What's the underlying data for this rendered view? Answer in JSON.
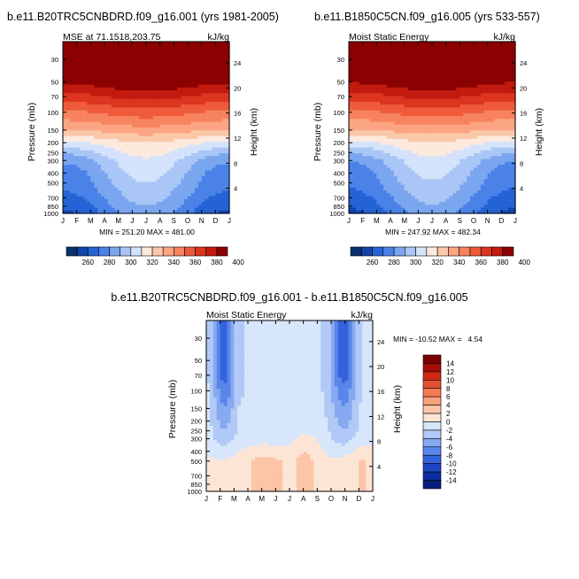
{
  "panels": [
    {
      "title": "b.e11.B20TRC5CNBDRD.f09_g16.001 (yrs 1981-2005)",
      "left_label": "MSE at 71.1518,203.75",
      "right_label": "kJ/kg",
      "stats": "MIN = 251.20 MAX = 481.00"
    },
    {
      "title": "b.e11.B1850C5CN.f09_g16.005 (yrs 533-557)",
      "left_label": "Moist Static Energy",
      "right_label": "kJ/kg",
      "stats": "MIN = 247.92 MAX = 482.34"
    },
    {
      "title": "b.e11.B20TRC5CNBDRD.f09_g16.001 - b.e11.B1850C5CN.f09_g16.005",
      "left_label": "Moist Static Energy",
      "right_label": "kJ/kg",
      "stats": "MIN = -10.52 MAX =   4.54"
    }
  ],
  "colors": {
    "abs_scale": [
      "#08306b",
      "#1243a8",
      "#2563d6",
      "#4a82e8",
      "#7aa6ef",
      "#a9c6f6",
      "#d4e3fb",
      "#fde9dd",
      "#fcc8aa",
      "#fba583",
      "#f7835f",
      "#ee5a3a",
      "#dc3520",
      "#c21a0e",
      "#8b0000"
    ],
    "diff_scale": [
      "#081f80",
      "#0b2ea3",
      "#1c45c4",
      "#3563dc",
      "#5a86ea",
      "#86a9f1",
      "#b0c9f7",
      "#d7e6fb",
      "#fde5d6",
      "#fcc5a7",
      "#fba07c",
      "#f57a55",
      "#e65030",
      "#cf2a14",
      "#a80c05",
      "#7d0000"
    ]
  },
  "chart_data": [
    {
      "type": "contour",
      "title": "b.e11.B20TRC5CNBDRD.f09_g16.001 (yrs 1981-2005)",
      "subtitle_left": "MSE at 71.1518,203.75",
      "subtitle_right": "kJ/kg",
      "xlabel": "",
      "ylabel": "Pressure (mb)",
      "ylabel_right": "Height (km)",
      "x_ticks": [
        "J",
        "F",
        "M",
        "A",
        "M",
        "J",
        "J",
        "A",
        "S",
        "O",
        "N",
        "D",
        "J"
      ],
      "y_ticks_pressure": [
        "30",
        "50",
        "70",
        "100",
        "150",
        "200",
        "250",
        "300",
        "400",
        "500",
        "700",
        "850",
        "1000"
      ],
      "y_ticks_height": [
        "24",
        "20",
        "16",
        "12",
        "8",
        "4"
      ],
      "ylim_pressure": [
        1000,
        20
      ],
      "y_scale": "log",
      "colorbar_labels": [
        "260",
        "280",
        "300",
        "320",
        "340",
        "360",
        "380",
        "400"
      ],
      "contour_levels": [
        250,
        260,
        270,
        280,
        290,
        300,
        310,
        320,
        330,
        340,
        350,
        360,
        370,
        380,
        390,
        400
      ],
      "profile_pressure": [
        1000,
        850,
        700,
        600,
        500,
        400,
        300,
        250,
        200,
        150,
        100,
        70,
        50,
        30,
        20
      ],
      "profile_winter": [
        268,
        272,
        276,
        280,
        282,
        284,
        292,
        302,
        318,
        340,
        358,
        376,
        392,
        420,
        450
      ],
      "profile_summer": [
        296,
        300,
        304,
        306,
        310,
        314,
        318,
        324,
        330,
        346,
        366,
        384,
        400,
        425,
        455
      ],
      "min": 251.2,
      "max": 481.0
    },
    {
      "type": "contour",
      "title": "b.e11.B1850C5CN.f09_g16.005 (yrs 533-557)",
      "subtitle_left": "Moist Static Energy",
      "subtitle_right": "kJ/kg",
      "xlabel": "",
      "ylabel": "Pressure (mb)",
      "ylabel_right": "Height (km)",
      "x_ticks": [
        "J",
        "F",
        "M",
        "A",
        "M",
        "J",
        "J",
        "A",
        "S",
        "O",
        "N",
        "D",
        "J"
      ],
      "y_ticks_pressure": [
        "30",
        "50",
        "70",
        "100",
        "150",
        "200",
        "250",
        "300",
        "400",
        "500",
        "700",
        "850",
        "1000"
      ],
      "y_ticks_height": [
        "24",
        "20",
        "16",
        "12",
        "8",
        "4"
      ],
      "ylim_pressure": [
        1000,
        20
      ],
      "y_scale": "log",
      "colorbar_labels": [
        "260",
        "280",
        "300",
        "320",
        "340",
        "360",
        "380",
        "400"
      ],
      "contour_levels": [
        250,
        260,
        270,
        280,
        290,
        300,
        310,
        320,
        330,
        340,
        350,
        360,
        370,
        380,
        390,
        400
      ],
      "profile_pressure": [
        1000,
        850,
        700,
        600,
        500,
        400,
        300,
        250,
        200,
        150,
        100,
        70,
        50,
        30,
        20
      ],
      "profile_winter": [
        267,
        271,
        275,
        279,
        281,
        283,
        291,
        301,
        317,
        339,
        357,
        375,
        391,
        420,
        450
      ],
      "profile_summer": [
        295,
        299,
        303,
        305,
        309,
        313,
        317,
        323,
        329,
        345,
        365,
        383,
        399,
        425,
        455
      ],
      "min": 247.92,
      "max": 482.34
    },
    {
      "type": "contour",
      "title": "b.e11.B20TRC5CNBDRD.f09_g16.001 - b.e11.B1850C5CN.f09_g16.005",
      "subtitle_left": "Moist Static Energy",
      "subtitle_right": "kJ/kg",
      "xlabel": "",
      "ylabel": "Pressure (mb)",
      "ylabel_right": "Height (km)",
      "x_ticks": [
        "J",
        "F",
        "M",
        "A",
        "M",
        "J",
        "J",
        "A",
        "S",
        "O",
        "N",
        "D",
        "J"
      ],
      "y_ticks_pressure": [
        "30",
        "50",
        "70",
        "100",
        "150",
        "200",
        "250",
        "300",
        "400",
        "500",
        "700",
        "850",
        "1000"
      ],
      "y_ticks_height": [
        "24",
        "20",
        "16",
        "12",
        "8",
        "4"
      ],
      "ylim_pressure": [
        1000,
        20
      ],
      "y_scale": "log",
      "colorbar_labels": [
        "14",
        "12",
        "10",
        "8",
        "6",
        "4",
        "2",
        "0",
        "-2",
        "-4",
        "-6",
        "-8",
        "-10",
        "-12",
        "-14"
      ],
      "contour_levels": [
        -14,
        -12,
        -10,
        -8,
        -6,
        -4,
        -2,
        0,
        2,
        4,
        6,
        8,
        10,
        12,
        14
      ],
      "min": -10.52,
      "max": 4.54
    }
  ]
}
